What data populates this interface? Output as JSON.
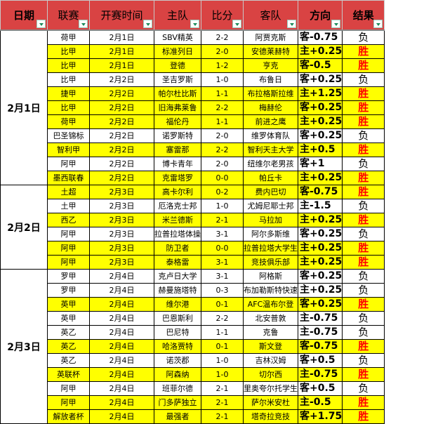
{
  "headers": [
    "日期",
    "联赛",
    "开赛时间",
    "主队",
    "比分",
    "客队",
    "方向",
    "结果"
  ],
  "colors": {
    "header": "#D94343",
    "highlight": "#FFFF00",
    "win": "#FF0000"
  },
  "groups": [
    {
      "date": "2月1日",
      "rows": [
        [
          "荷甲",
          "2月1日",
          "SBV精英",
          "2-2",
          "阿贾克斯",
          "客-0.75",
          "负"
        ],
        [
          "比甲",
          "2月1日",
          "标准列日",
          "2-0",
          "安德莱赫特",
          "主+0.25",
          "胜"
        ],
        [
          "比甲",
          "2月1日",
          "登德",
          "1-2",
          "亨克",
          "客-0.5",
          "胜"
        ],
        [
          "比甲",
          "2月2日",
          "圣吉罗斯",
          "1-0",
          "布鲁日",
          "客+0.25",
          "负"
        ],
        [
          "捷甲",
          "2月2日",
          "帕尔杜比斯",
          "1-1",
          "布拉格斯拉维",
          "主+1.25",
          "胜"
        ],
        [
          "比甲",
          "2月2日",
          "旧海弗莱鲁",
          "2-2",
          "梅赫伦",
          "客+0.25",
          "胜"
        ],
        [
          "荷甲",
          "2月2日",
          "福伦丹",
          "1-1",
          "前进之鹰",
          "主+0.25",
          "胜"
        ],
        [
          "巴圣锦标",
          "2月2日",
          "诺罗斯特",
          "2-0",
          "维罗体育队",
          "客+0.25",
          "负"
        ],
        [
          "智利甲",
          "2月2日",
          "塞雷那",
          "2-2",
          "智利天主大学",
          "主+0.5",
          "胜"
        ],
        [
          "阿甲",
          "2月2日",
          "博卡青年",
          "2-0",
          "纽维尔老男孩",
          "客+1",
          "负"
        ],
        [
          "墨西联春",
          "2月2日",
          "克雷塔罗",
          "0-0",
          "帕丘卡",
          "主+0.25",
          "胜"
        ]
      ]
    },
    {
      "date": "2月2日",
      "rows": [
        [
          "土超",
          "2月3日",
          "高卡尔利",
          "0-2",
          "费内巴切",
          "客-0.75",
          "胜"
        ],
        [
          "土甲",
          "2月3日",
          "厄洛克士邦",
          "1-0",
          "尤姆尼耶士邦",
          "主-1.5",
          "负"
        ],
        [
          "西乙",
          "2月3日",
          "米兰德斯",
          "2-1",
          "马拉加",
          "主+0.25",
          "胜"
        ],
        [
          "阿甲",
          "2月3日",
          "拉普拉塔体操",
          "3-1",
          "阿尔多斯维",
          "客+0.25",
          "负"
        ],
        [
          "阿甲",
          "2月3日",
          "防卫者",
          "0-0",
          "拉普拉塔大学生",
          "主+0.25",
          "胜"
        ],
        [
          "阿甲",
          "2月3日",
          "泰格雷",
          "3-1",
          "竞技俱乐部",
          "主+0.25",
          "胜"
        ]
      ]
    },
    {
      "date": "2月3日",
      "rows": [
        [
          "罗甲",
          "2月4日",
          "克卢日大学",
          "3-1",
          "阿格斯",
          "客+0.25",
          "负"
        ],
        [
          "罗甲",
          "2月4日",
          "赫曼施塔特",
          "0-3",
          "布加勒斯特快速",
          "主+0.25",
          "负"
        ],
        [
          "英甲",
          "2月4日",
          "维尔港",
          "0-1",
          "AFC温布尔登",
          "客+0.25",
          "胜"
        ],
        [
          "英甲",
          "2月4日",
          "巴恩斯利",
          "2-2",
          "北安普敦",
          "主-0.75",
          "负"
        ],
        [
          "英乙",
          "2月4日",
          "巴尼特",
          "1-1",
          "克鲁",
          "主-0.75",
          "负"
        ],
        [
          "英乙",
          "2月4日",
          "哈洛贾特",
          "0-1",
          "斯文登",
          "客-0.75",
          "胜"
        ],
        [
          "英乙",
          "2月4日",
          "诺茨郡",
          "1-0",
          "吉林汉姆",
          "客+0.5",
          "负"
        ],
        [
          "英联杯",
          "2月4日",
          "阿森纳",
          "1-0",
          "切尔西",
          "主-0.75",
          "胜"
        ],
        [
          "阿甲",
          "2月4日",
          "班菲尔德",
          "2-1",
          "里奥夸尔托学生",
          "客+0.5",
          "负"
        ],
        [
          "阿甲",
          "2月4日",
          "门多萨独立",
          "2-1",
          "萨尔米安杜",
          "主-0.5",
          "胜"
        ],
        [
          "解放者杯",
          "2月4日",
          "最强者",
          "2-1",
          "塔奇拉竞技",
          "客+1.75",
          "胜"
        ]
      ]
    }
  ]
}
